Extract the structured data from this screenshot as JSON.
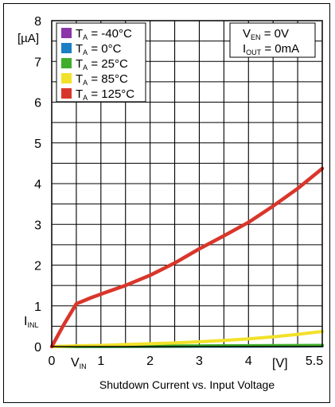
{
  "chart_data": {
    "type": "line",
    "title": "Shutdown Current vs. Input Voltage",
    "xlabel": "[V]",
    "ylabel": "[µA]",
    "y_axis_marker": {
      "main": "I",
      "sub": "INL"
    },
    "x_axis_marker": {
      "main": "V",
      "sub": "IN"
    },
    "xlim": [
      0,
      5.5
    ],
    "ylim": [
      0,
      8
    ],
    "x_ticks": [
      "0",
      "1",
      "2",
      "3",
      "4",
      "5.5"
    ],
    "y_ticks": [
      "0",
      "1",
      "2",
      "3",
      "4",
      "5",
      "6",
      "7",
      "8"
    ],
    "grid": true,
    "legend_position": "top-left",
    "conditions": [
      {
        "main": "V",
        "sub": "EN",
        "value": " = 0V"
      },
      {
        "main": "I",
        "sub": "OUT",
        "value": " = 0mA"
      }
    ],
    "series": [
      {
        "name": "-40°C",
        "prefix": "T",
        "sub": "A",
        "color": "#8b35a8",
        "x": [
          0,
          5.5
        ],
        "y": [
          0.0,
          0.02
        ]
      },
      {
        "name": "0°C",
        "prefix": "T",
        "sub": "A",
        "color": "#1a7fc3",
        "x": [
          0,
          5.5
        ],
        "y": [
          0.0,
          0.02
        ]
      },
      {
        "name": "25°C",
        "prefix": "T",
        "sub": "A",
        "color": "#3fae2a",
        "x": [
          0,
          5.5
        ],
        "y": [
          0.0,
          0.03
        ]
      },
      {
        "name": "85°C",
        "prefix": "T",
        "sub": "A",
        "color": "#f2e12a",
        "x": [
          0,
          0.5,
          1,
          1.5,
          2,
          2.5,
          3,
          3.5,
          4,
          4.5,
          5,
          5.5
        ],
        "y": [
          0.0,
          0.02,
          0.03,
          0.05,
          0.07,
          0.09,
          0.12,
          0.15,
          0.19,
          0.24,
          0.3,
          0.37
        ]
      },
      {
        "name": "125°C",
        "prefix": "T",
        "sub": "A",
        "color": "#d9362b",
        "x": [
          0,
          0.25,
          0.5,
          0.8,
          1.1,
          1.5,
          2,
          2.5,
          3,
          3.5,
          4,
          4.5,
          5,
          5.5
        ],
        "y": [
          0.0,
          0.55,
          1.05,
          1.2,
          1.33,
          1.5,
          1.75,
          2.05,
          2.4,
          2.72,
          3.05,
          3.45,
          3.88,
          4.37
        ]
      }
    ]
  }
}
